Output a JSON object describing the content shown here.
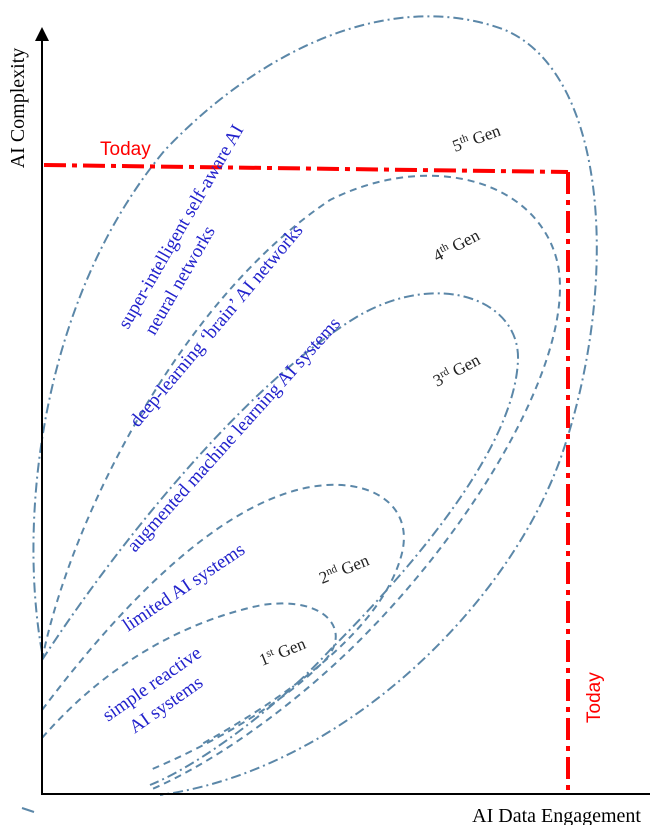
{
  "axes": {
    "y_label": "AI Complexity",
    "x_label": "AI Data Engagement"
  },
  "today_labels": {
    "horizontal": "Today",
    "vertical": "Today"
  },
  "generations": [
    {
      "num": "1",
      "sup": "st",
      "suffix": " Gen",
      "description": [
        "simple reactive",
        "AI systems"
      ]
    },
    {
      "num": "2",
      "sup": "nd",
      "suffix": " Gen",
      "description": [
        "limited AI systems"
      ]
    },
    {
      "num": "3",
      "sup": "rd",
      "suffix": " Gen",
      "description": [
        "augmented machine learning AI systems"
      ]
    },
    {
      "num": "4",
      "sup": "th",
      "suffix": " Gen",
      "description": [
        "deep-learning ‘brain’ AI networks"
      ]
    },
    {
      "num": "5",
      "sup": "th",
      "suffix": " Gen",
      "description": [
        "super-intelligent self-aware AI",
        "neural networks"
      ]
    }
  ],
  "colors": {
    "today_line": "#ff0000",
    "ellipse": "#5b87a8",
    "description_text": "#2222cc",
    "axis": "#000000"
  }
}
